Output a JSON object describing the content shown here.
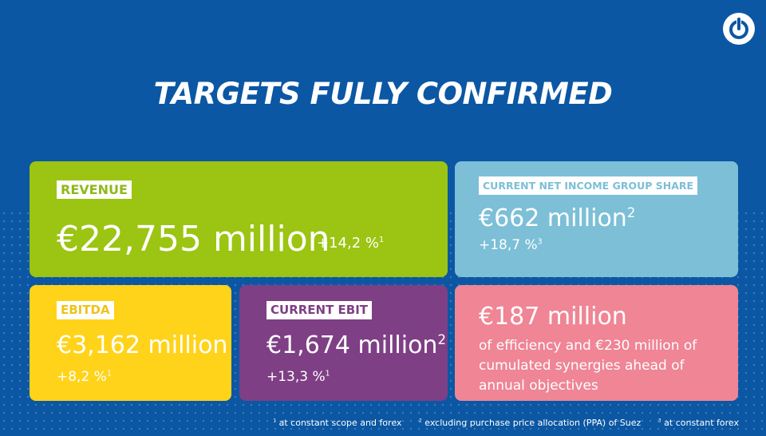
{
  "title": "TARGETS FULLY CONFIRMED",
  "logo": "suez-logo-icon",
  "colors": {
    "background": "#0b57a3",
    "revenue": "#9cc412",
    "net_income": "#7cbfd7",
    "ebitda": "#ffd31a",
    "ebit": "#7e3f85",
    "efficiency": "#ef8595"
  },
  "cards": {
    "revenue": {
      "label": "REVENUE",
      "value": "€22,755 million",
      "change": "+14,2 %",
      "note": "1"
    },
    "net_income": {
      "label": "CURRENT NET INCOME GROUP SHARE",
      "value": "€662 million",
      "value_note": "2",
      "change": "+18,7 %",
      "note": "3"
    },
    "ebitda": {
      "label": "EBITDA",
      "value": "€3,162 million",
      "change": "+8,2 %",
      "note": "1"
    },
    "ebit": {
      "label": "CURRENT EBIT",
      "value": "€1,674 million",
      "value_note": "2",
      "change": "+13,3 %",
      "note": "1"
    },
    "efficiency": {
      "value": "€187 million",
      "description": "of efficiency and €230 million of cumulated synergies ahead of annual objectives"
    }
  },
  "footnotes": [
    {
      "mark": "1",
      "text": "at constant scope and forex"
    },
    {
      "mark": "2",
      "text": "excluding purchase price allocation (PPA) of  Suez"
    },
    {
      "mark": "3",
      "text": "at constant forex"
    }
  ]
}
